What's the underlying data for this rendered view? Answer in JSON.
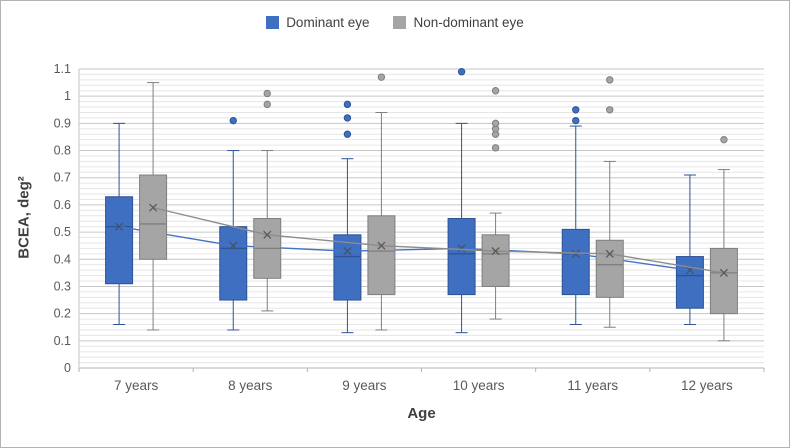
{
  "legend": {
    "items": [
      {
        "label": "Dominant eye",
        "color": "#3E6FC1"
      },
      {
        "label": "Non-dominant eye",
        "color": "#A5A5A5"
      }
    ]
  },
  "chart_data": {
    "type": "box",
    "title": "",
    "xlabel": "Age",
    "ylabel": "BCEA, deg²",
    "ylim": [
      0,
      1.1
    ],
    "ytick_step": 0.1,
    "grid": {
      "major": true,
      "minor": true,
      "minor_step": 0.02,
      "legend_position": "top"
    },
    "categories": [
      "7 years",
      "8 years",
      "9 years",
      "10 years",
      "11 years",
      "12 years"
    ],
    "series": [
      {
        "name": "Dominant eye",
        "fill": "#3E6FC1",
        "border": "#2E5396",
        "line": "#4472C4",
        "marker": "#44546A",
        "boxes": [
          {
            "low": 0.16,
            "q1": 0.31,
            "median": 0.52,
            "q3": 0.63,
            "high": 0.9,
            "mean": 0.52,
            "outliers": []
          },
          {
            "low": 0.14,
            "q1": 0.25,
            "median": 0.44,
            "q3": 0.52,
            "high": 0.8,
            "mean": 0.45,
            "outliers": [
              0.91
            ]
          },
          {
            "low": 0.13,
            "q1": 0.25,
            "median": 0.41,
            "q3": 0.49,
            "high": 0.77,
            "mean": 0.43,
            "outliers": [
              0.86,
              0.92,
              0.97
            ]
          },
          {
            "low": 0.13,
            "q1": 0.27,
            "median": 0.42,
            "q3": 0.55,
            "high": 0.9,
            "mean": 0.44,
            "outliers": [
              1.09
            ]
          },
          {
            "low": 0.16,
            "q1": 0.27,
            "median": 0.42,
            "q3": 0.51,
            "high": 0.89,
            "mean": 0.42,
            "outliers": [
              0.91,
              0.95
            ]
          },
          {
            "low": 0.16,
            "q1": 0.22,
            "median": 0.34,
            "q3": 0.41,
            "high": 0.71,
            "mean": 0.36,
            "outliers": []
          }
        ]
      },
      {
        "name": "Non-dominant eye",
        "fill": "#A5A5A5",
        "border": "#7F7F7F",
        "line": "#8C8C8C",
        "marker": "#595959",
        "boxes": [
          {
            "low": 0.14,
            "q1": 0.4,
            "median": 0.53,
            "q3": 0.71,
            "high": 1.05,
            "mean": 0.59,
            "outliers": []
          },
          {
            "low": 0.21,
            "q1": 0.33,
            "median": 0.44,
            "q3": 0.55,
            "high": 0.8,
            "mean": 0.49,
            "outliers": [
              0.97,
              1.01
            ]
          },
          {
            "low": 0.14,
            "q1": 0.27,
            "median": 0.43,
            "q3": 0.56,
            "high": 0.94,
            "mean": 0.45,
            "outliers": [
              1.07
            ]
          },
          {
            "low": 0.18,
            "q1": 0.3,
            "median": 0.42,
            "q3": 0.49,
            "high": 0.57,
            "mean": 0.43,
            "outliers": [
              0.81,
              0.86,
              0.88,
              0.9,
              1.02
            ]
          },
          {
            "low": 0.15,
            "q1": 0.26,
            "median": 0.38,
            "q3": 0.47,
            "high": 0.76,
            "mean": 0.42,
            "outliers": [
              0.95,
              1.06
            ]
          },
          {
            "low": 0.1,
            "q1": 0.2,
            "median": 0.35,
            "q3": 0.44,
            "high": 0.73,
            "mean": 0.35,
            "outliers": [
              0.84
            ]
          }
        ]
      }
    ]
  }
}
